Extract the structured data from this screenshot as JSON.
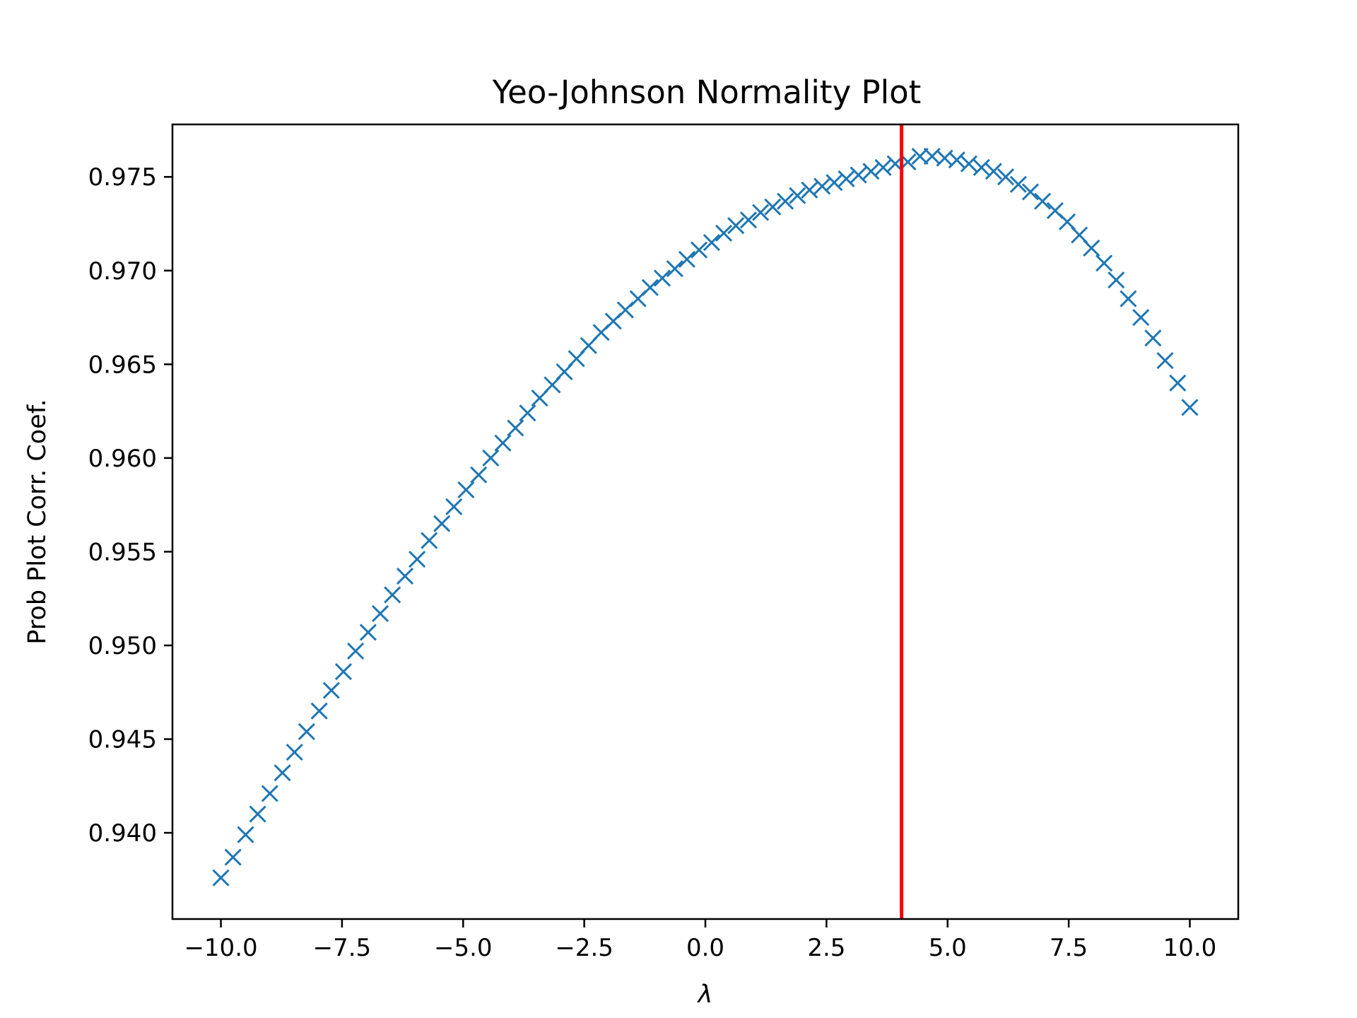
{
  "chart_data": {
    "type": "scatter",
    "title": "Yeo-Johnson Normality Plot",
    "xlabel": "λ",
    "ylabel": "Prob Plot Corr. Coef.",
    "xlim": [
      -11.0,
      11.0
    ],
    "ylim": [
      0.9354,
      0.9778
    ],
    "xticks": [
      -10.0,
      -7.5,
      -5.0,
      -2.5,
      0.0,
      2.5,
      5.0,
      7.5,
      10.0
    ],
    "xtick_labels": [
      "−10.0",
      "−7.5",
      "−5.0",
      "−2.5",
      "0.0",
      "2.5",
      "5.0",
      "7.5",
      "10.0"
    ],
    "yticks": [
      0.94,
      0.945,
      0.95,
      0.955,
      0.96,
      0.965,
      0.97,
      0.975
    ],
    "ytick_labels": [
      "0.940",
      "0.945",
      "0.950",
      "0.955",
      "0.960",
      "0.965",
      "0.970",
      "0.975"
    ],
    "grid": false,
    "marker": "x",
    "series_color": "#1f77b4",
    "vline": {
      "x": 4.05,
      "color": "#ff0000"
    },
    "series": [
      {
        "x": [
          -10.0,
          -9.75,
          -9.49,
          -9.24,
          -8.99,
          -8.73,
          -8.48,
          -8.23,
          -7.97,
          -7.72,
          -7.47,
          -7.22,
          -6.96,
          -6.71,
          -6.46,
          -6.2,
          -5.95,
          -5.7,
          -5.44,
          -5.19,
          -4.94,
          -4.68,
          -4.43,
          -4.18,
          -3.92,
          -3.67,
          -3.42,
          -3.16,
          -2.91,
          -2.66,
          -2.41,
          -2.15,
          -1.9,
          -1.65,
          -1.39,
          -1.14,
          -0.89,
          -0.63,
          -0.38,
          -0.13,
          0.13,
          0.38,
          0.63,
          0.89,
          1.14,
          1.39,
          1.65,
          1.9,
          2.15,
          2.41,
          2.66,
          2.91,
          3.16,
          3.42,
          3.67,
          3.92,
          4.18,
          4.43,
          4.68,
          4.94,
          5.19,
          5.44,
          5.7,
          5.95,
          6.2,
          6.46,
          6.71,
          6.96,
          7.22,
          7.47,
          7.72,
          7.97,
          8.23,
          8.48,
          8.73,
          8.99,
          9.24,
          9.49,
          9.75,
          10.0
        ],
        "y": [
          0.9376,
          0.9387,
          0.9399,
          0.941,
          0.9421,
          0.9432,
          0.9443,
          0.9454,
          0.9465,
          0.9476,
          0.9486,
          0.9497,
          0.9507,
          0.9517,
          0.9527,
          0.9537,
          0.9546,
          0.9556,
          0.9565,
          0.9574,
          0.9583,
          0.9591,
          0.96,
          0.9608,
          0.9616,
          0.9624,
          0.9632,
          0.9639,
          0.9646,
          0.9653,
          0.966,
          0.9667,
          0.9673,
          0.9679,
          0.9685,
          0.9691,
          0.9696,
          0.9701,
          0.9706,
          0.9711,
          0.9715,
          0.972,
          0.9724,
          0.9727,
          0.9731,
          0.9734,
          0.9737,
          0.974,
          0.9743,
          0.9745,
          0.9747,
          0.9749,
          0.9751,
          0.9753,
          0.9755,
          0.9757,
          0.9758,
          0.9761,
          0.9761,
          0.976,
          0.9759,
          0.9757,
          0.9755,
          0.9753,
          0.975,
          0.9746,
          0.9742,
          0.9737,
          0.9732,
          0.9726,
          0.9719,
          0.9712,
          0.9704,
          0.9695,
          0.9685,
          0.9675,
          0.9664,
          0.9652,
          0.964,
          0.9627
        ]
      }
    ]
  }
}
